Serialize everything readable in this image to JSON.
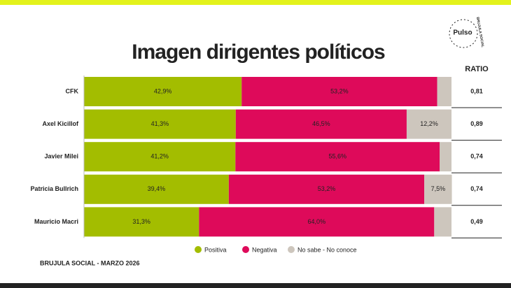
{
  "chart_data": {
    "type": "stacked-barh",
    "title": "Imagen dirigentes políticos",
    "logo_text": "Pulso",
    "logo_subtext": "BRUJULA SOCIAL",
    "source": "BRUJULA SOCIAL - MARZO 2026",
    "categories": [
      "CFK",
      "Axel Kicillof",
      "Javier Milei",
      "Patricia Bullrich",
      "Mauricio Macri"
    ],
    "xlim": [
      0,
      100
    ],
    "legend": "bottom",
    "series": [
      {
        "name": "Positiva",
        "color": "#a3bd00",
        "values": [
          42.9,
          41.3,
          41.2,
          39.4,
          31.3
        ],
        "value_labels": [
          "42,9%",
          "41,3%",
          "41,2%",
          "39,4%",
          "31,3%"
        ]
      },
      {
        "name": "Negativa",
        "color": "#de0a5a",
        "values": [
          53.2,
          46.5,
          55.6,
          53.2,
          64.0
        ],
        "value_labels": [
          "53,2%",
          "46,5%",
          "55,6%",
          "53,2%",
          "64,0%"
        ]
      },
      {
        "name": "No sabe - No conoce",
        "color": "#cdc6bd",
        "values": [
          3.9,
          12.2,
          3.2,
          7.5,
          4.7
        ],
        "value_labels": [
          null,
          "12,2%",
          null,
          "7,5%",
          null
        ]
      }
    ],
    "ratio": {
      "title": "RATIO",
      "values": [
        0.81,
        0.89,
        0.74,
        0.74,
        0.49
      ],
      "value_labels": [
        "0,81",
        "0,89",
        "0,74",
        "0,74",
        "0,49"
      ]
    }
  }
}
